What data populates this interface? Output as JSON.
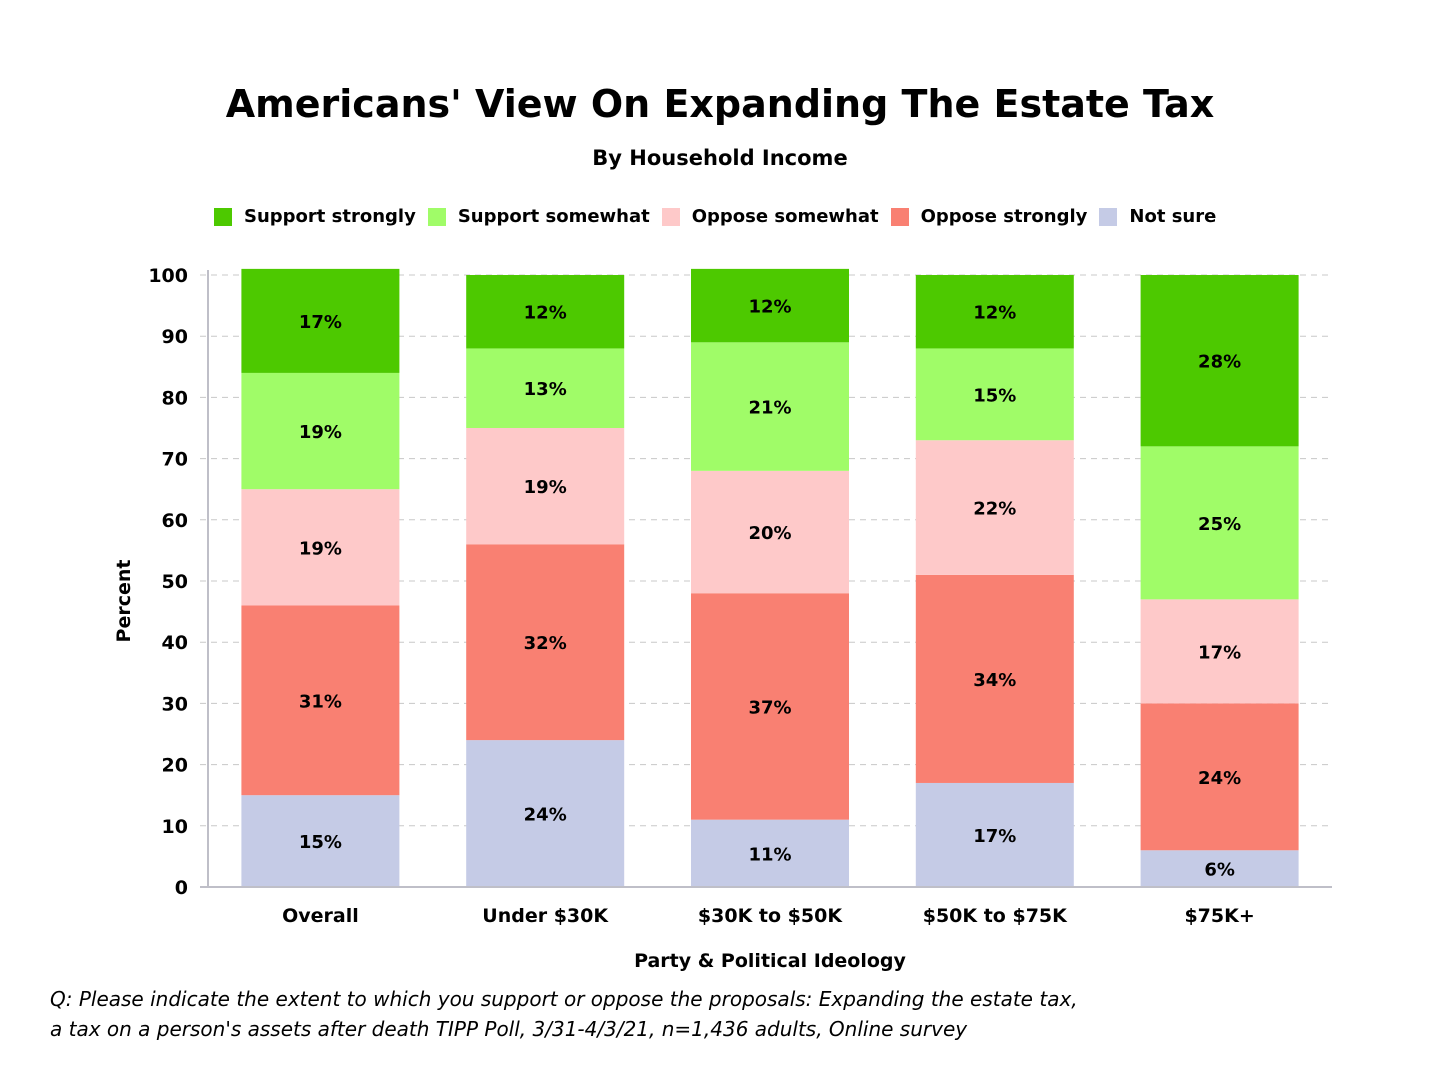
{
  "chart_data": {
    "type": "bar",
    "stacked": true,
    "title": "Americans' View On Expanding The Estate Tax",
    "subtitle": "By Household Income",
    "xlabel": "Party & Political Ideology",
    "ylabel": "Percent",
    "ylim": [
      0,
      100
    ],
    "yticks": [
      0,
      10,
      20,
      30,
      40,
      50,
      60,
      70,
      80,
      90,
      100
    ],
    "grid": true,
    "legend_position": "top",
    "categories": [
      "Overall",
      "Under $30K",
      "$30K to $50K",
      "$50K to $75K",
      "$75K+"
    ],
    "series": [
      {
        "name": "Not sure",
        "color": "#c5cbe6",
        "values": [
          15,
          24,
          11,
          17,
          6
        ]
      },
      {
        "name": "Oppose strongly",
        "color": "#f98072",
        "values": [
          31,
          32,
          37,
          34,
          24
        ]
      },
      {
        "name": "Oppose somewhat",
        "color": "#fec9c9",
        "values": [
          19,
          19,
          20,
          22,
          17
        ]
      },
      {
        "name": "Support somewhat",
        "color": "#a0fc68",
        "values": [
          19,
          13,
          21,
          15,
          25
        ]
      },
      {
        "name": "Support strongly",
        "color": "#4dc900",
        "values": [
          17,
          12,
          12,
          12,
          28
        ]
      }
    ],
    "legend_order": [
      "Support strongly",
      "Support somewhat",
      "Oppose somewhat",
      "Oppose strongly",
      "Not sure"
    ],
    "footnote": [
      "Q:  Please indicate the extent to which you support or oppose the proposals:  Expanding the estate tax,",
      "a tax on a person's assets after death TIPP Poll, 3/31-4/3/21, n=1,436 adults, Online survey"
    ]
  }
}
